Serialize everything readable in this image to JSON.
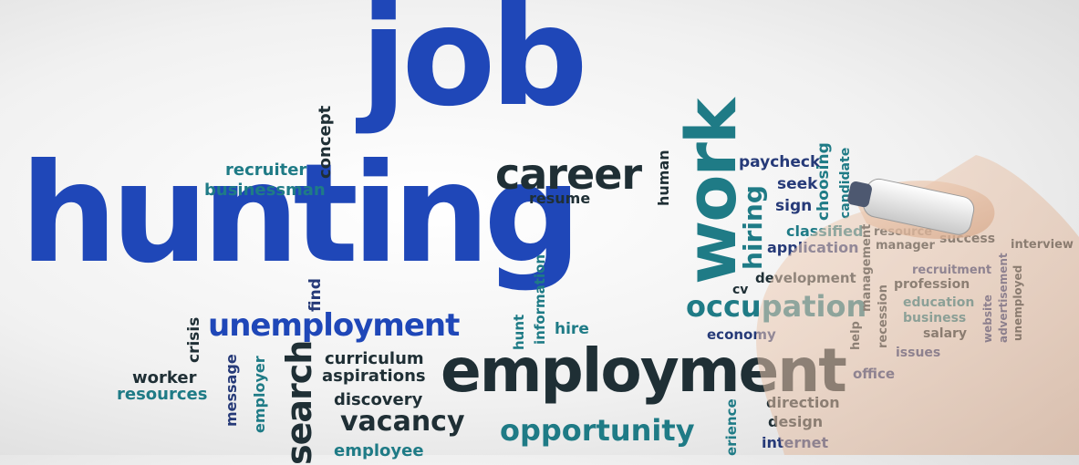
{
  "colors": {
    "blue": "#1f47b8",
    "navy": "#263a78",
    "teal": "#1f7b86",
    "dark": "#1f2f35"
  },
  "words": {
    "job": "job",
    "hunting": "hunting",
    "work": "work",
    "career": "career",
    "resume": "resume",
    "human": "human",
    "paycheck": "paycheck",
    "seek": "seek",
    "sign": "sign",
    "choosing": "choosing",
    "candidate": "candidate",
    "hiring": "hiring",
    "classified": "classified",
    "application": "application",
    "resource": "resource",
    "manager": "manager",
    "success": "success",
    "interview": "interview",
    "recruitment": "recruitment",
    "profession": "profession",
    "education": "education",
    "business": "business",
    "salary": "salary",
    "issues": "issues",
    "website": "website",
    "advertisement": "advertisement",
    "unemployed": "unemployed",
    "development": "development",
    "cv": "cv",
    "occupation": "occupation",
    "economy": "economy",
    "management": "management",
    "help": "help",
    "recession": "recession",
    "office": "office",
    "recruiter": "recruiter",
    "businessman": "businessman",
    "concept": "concept",
    "find": "find",
    "crisis": "crisis",
    "unemployment": "unemployment",
    "hunt": "hunt",
    "information": "information",
    "hire": "hire",
    "worker": "worker",
    "resources": "resources",
    "message": "message",
    "employer": "employer",
    "search": "search",
    "curriculum": "curriculum",
    "aspirations": "aspirations",
    "discovery": "discovery",
    "vacancy": "vacancy",
    "employment": "employment",
    "opportunity": "opportunity",
    "employee": "employee",
    "direction": "direction",
    "design": "design",
    "internet": "internet",
    "experience": "erience"
  }
}
